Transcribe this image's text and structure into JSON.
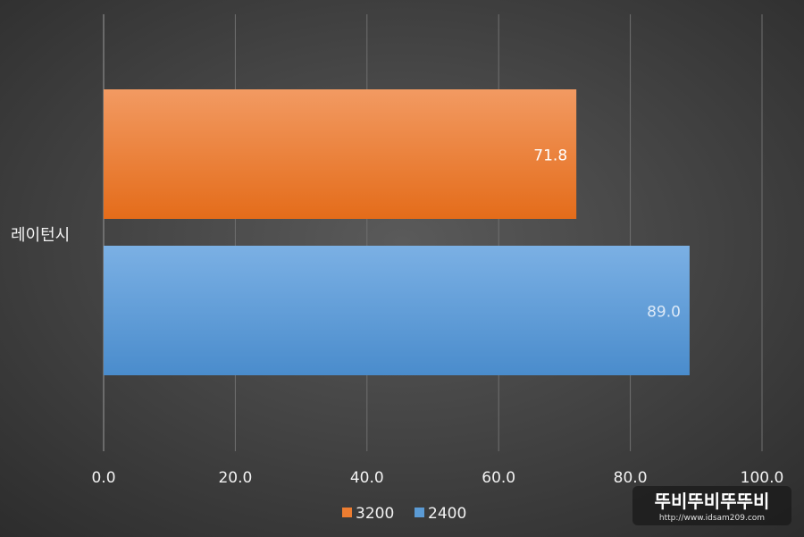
{
  "chart_data": {
    "type": "bar",
    "orientation": "horizontal",
    "categories": [
      "레이턴시"
    ],
    "series": [
      {
        "name": "3200",
        "values": [
          71.8
        ],
        "color": "#ed7d31",
        "label": "71.8"
      },
      {
        "name": "2400",
        "values": [
          89.0
        ],
        "color": "#5b9bd5",
        "label": "89.0"
      }
    ],
    "xlim": [
      0,
      100
    ],
    "x_ticks": [
      "0.0",
      "20.0",
      "40.0",
      "60.0",
      "80.0",
      "100.0"
    ],
    "grid": "vertical",
    "legend_position": "bottom"
  },
  "watermark": {
    "title": "뚜비뚜비뚜뚜비",
    "url": "http://www.idsam209.com"
  },
  "colors": {
    "background_center": "#5a5a5a",
    "background_edge": "#2c2c2c",
    "gridline": "#707070",
    "text": "#f2f2f2"
  }
}
